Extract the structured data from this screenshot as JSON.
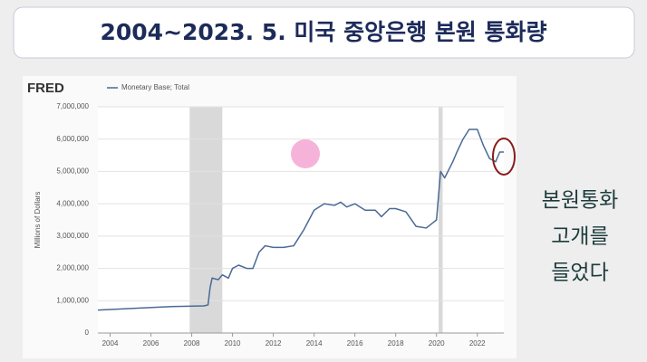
{
  "slide": {
    "title": "2004~2023. 5. 미국 중앙은행 본원 통화량",
    "side_text": [
      "본원통화",
      "고개를",
      "들었다"
    ]
  },
  "chart_data": {
    "type": "line",
    "source": "FRED",
    "ylabel": "Millions of Dollars",
    "series": [
      {
        "name": "Monetary Base; Total",
        "color": "#4a6a96",
        "x": [
          2003.4,
          2005,
          2007,
          2008.6,
          2008.8,
          2008.9,
          2009.0,
          2009.3,
          2009.5,
          2009.8,
          2010.0,
          2010.3,
          2010.7,
          2011.0,
          2011.3,
          2011.6,
          2012.0,
          2012.5,
          2013.0,
          2013.5,
          2014.0,
          2014.5,
          2015.0,
          2015.3,
          2015.6,
          2016.0,
          2016.5,
          2017.0,
          2017.3,
          2017.7,
          2018.0,
          2018.5,
          2019.0,
          2019.5,
          2019.8,
          2020.0,
          2020.2,
          2020.4,
          2020.8,
          2021.0,
          2021.3,
          2021.6,
          2022.0,
          2022.3,
          2022.6,
          2022.9,
          2023.1,
          2023.3
        ],
        "values": [
          710000,
          760000,
          820000,
          840000,
          870000,
          1400000,
          1700000,
          1650000,
          1800000,
          1700000,
          2000000,
          2100000,
          2000000,
          2000000,
          2500000,
          2700000,
          2650000,
          2650000,
          2700000,
          3200000,
          3800000,
          4000000,
          3950000,
          4050000,
          3900000,
          4000000,
          3800000,
          3800000,
          3600000,
          3850000,
          3850000,
          3750000,
          3300000,
          3250000,
          3400000,
          3500000,
          5000000,
          4800000,
          5300000,
          5600000,
          6000000,
          6300000,
          6300000,
          5800000,
          5400000,
          5300000,
          5600000,
          5600000
        ]
      }
    ],
    "recessions": [
      [
        2007.9,
        2009.5
      ],
      [
        2020.1,
        2020.3
      ]
    ],
    "xlim": [
      2003.4,
      2023.3
    ],
    "xticks": [
      2004,
      2006,
      2008,
      2010,
      2012,
      2014,
      2016,
      2018,
      2020,
      2022
    ],
    "ylim": [
      0,
      7000000
    ],
    "yticks": [
      0,
      {
        "value": 1000000,
        "label": "1,000,000"
      },
      {
        "value": 2000000,
        "label": "2,000,000"
      },
      {
        "value": 3000000,
        "label": "3,000,000"
      },
      {
        "value": 4000000,
        "label": "4,000,000"
      },
      {
        "value": 5000000,
        "label": "5,000,000"
      },
      {
        "value": 6000000,
        "label": "6,000,000"
      },
      {
        "value": 7000000,
        "label": "7,000,000"
      }
    ],
    "grid": true,
    "recession_color": "#d9d9d9"
  }
}
